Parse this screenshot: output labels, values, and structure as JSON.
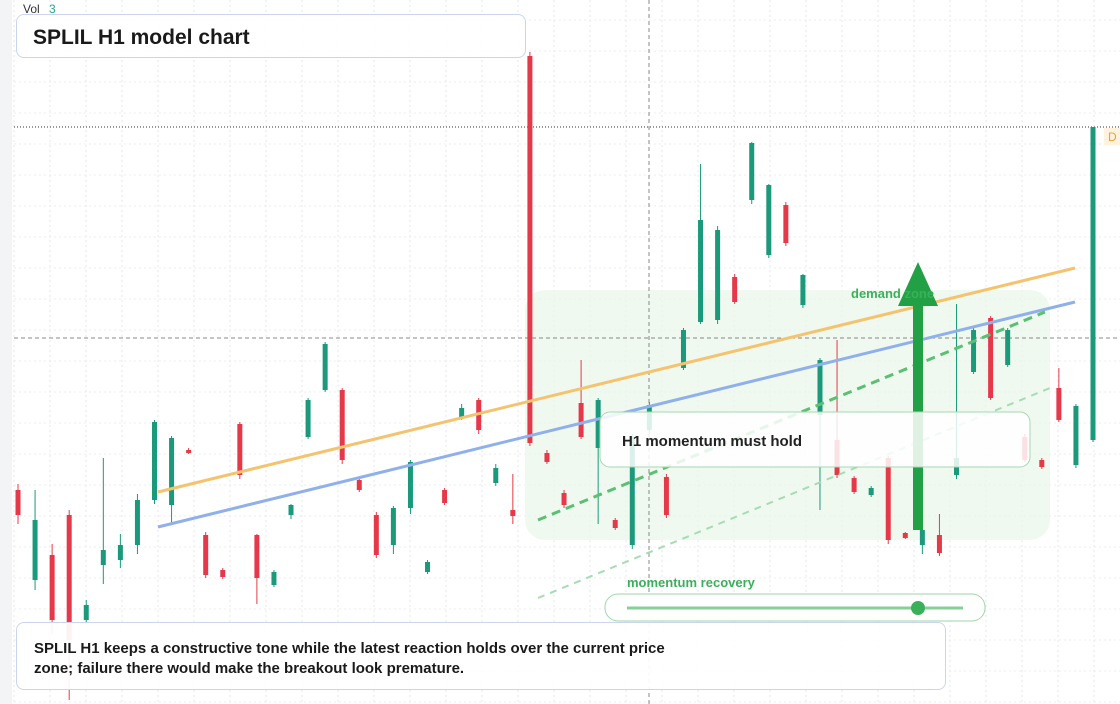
{
  "chart_data": {
    "type": "candlestick",
    "title": "SPLIL H1 model chart",
    "ylim": [
      0,
      704
    ],
    "up_color": "#1a9a7a",
    "down_color": "#e5394a",
    "grid": true,
    "open": [
      214,
      124,
      149,
      189,
      84,
      139,
      144,
      159,
      204,
      199,
      254,
      169,
      134,
      280,
      169,
      119,
      189,
      267,
      314,
      314,
      224,
      189,
      159,
      196,
      132,
      214,
      286,
      304,
      221,
      194,
      648,
      251,
      211,
      301,
      256,
      184,
      159,
      274,
      227,
      336,
      382,
      384,
      427,
      504,
      449,
      499,
      399,
      289,
      264,
      226,
      209,
      246,
      171,
      159,
      169,
      229,
      332,
      386,
      339,
      267,
      244,
      316,
      239,
      264
    ],
    "high": [
      220,
      214,
      160,
      194,
      104,
      246,
      170,
      210,
      284,
      268,
      256,
      172,
      136,
      282,
      170,
      134,
      200,
      306,
      362,
      316,
      226,
      192,
      198,
      244,
      144,
      216,
      300,
      306,
      240,
      230,
      652,
      254,
      214,
      344,
      306,
      186,
      270,
      302,
      230,
      376,
      540,
      478,
      430,
      562,
      520,
      502,
      430,
      346,
      364,
      228,
      218,
      248,
      172,
      176,
      190,
      400,
      376,
      388,
      376,
      270,
      246,
      336,
      300,
      577
    ],
    "low": [
      180,
      114,
      70,
      4,
      80,
      120,
      136,
      150,
      200,
      180,
      250,
      126,
      125,
      225,
      100,
      117,
      185,
      265,
      312,
      240,
      212,
      146,
      150,
      190,
      130,
      199,
      284,
      270,
      218,
      180,
      258,
      240,
      196,
      265,
      180,
      174,
      155,
      270,
      186,
      334,
      380,
      380,
      400,
      500,
      446,
      458,
      396,
      194,
      226,
      210,
      207,
      160,
      165,
      150,
      148,
      225,
      330,
      304,
      337,
      242,
      235,
      282,
      236,
      262
    ],
    "close": [
      189,
      184,
      84,
      64,
      99,
      154,
      159,
      204,
      282,
      266,
      251,
      129,
      127,
      229,
      126,
      132,
      199,
      304,
      360,
      244,
      214,
      149,
      196,
      242,
      142,
      201,
      296,
      274,
      236,
      188,
      261,
      242,
      199,
      267,
      304,
      176,
      267,
      299,
      189,
      374,
      484,
      474,
      402,
      561,
      519,
      461,
      429,
      344,
      229,
      212,
      216,
      164,
      166,
      174,
      151,
      246,
      374,
      306,
      374,
      244,
      237,
      284,
      298,
      577
    ]
  },
  "vol": {
    "label": "Vol",
    "value": "3"
  },
  "price_tag": "D",
  "zone_label": "demand zone",
  "callout": "H1 momentum must hold",
  "slider_label": "momentum recovery",
  "note": "SPLIL H1 keeps a constructive tone while the latest reaction holds over the current price zone; failure there would make the breakout look premature."
}
